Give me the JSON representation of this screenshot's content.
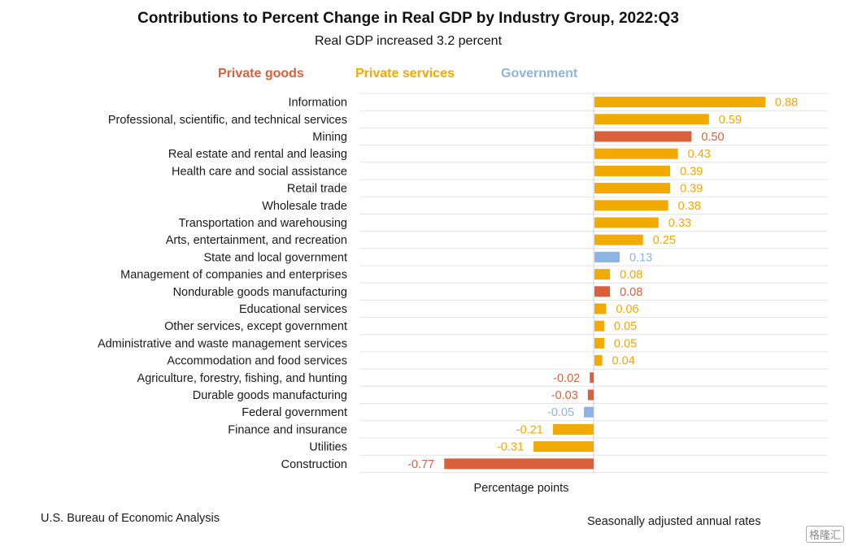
{
  "chart_data": {
    "type": "bar",
    "orientation": "horizontal",
    "title": "Contributions to Percent Change in Real GDP by Industry Group, 2022:Q3",
    "subtitle": "Real GDP increased 3.2 percent",
    "xlabel": "Percentage points",
    "xlim": [
      -1.0,
      1.3
    ],
    "grid": true,
    "legend_placement": "top",
    "legend": [
      {
        "name": "Private goods",
        "color": "#d9603b"
      },
      {
        "name": "Private services",
        "color": "#f2a900"
      },
      {
        "name": "Government",
        "color": "#8db4e2"
      }
    ],
    "categories": [
      "Information",
      "Professional, scientific, and technical services",
      "Mining",
      "Real estate and rental and leasing",
      "Health care and social assistance",
      "Retail trade",
      "Wholesale trade",
      "Transportation and warehousing",
      "Arts, entertainment, and recreation",
      "State and local government",
      "Management of companies and enterprises",
      "Nondurable goods manufacturing",
      "Educational services",
      "Other services, except government",
      "Administrative and waste management services",
      "Accommodation and food services",
      "Agriculture, forestry, fishing, and hunting",
      "Durable goods manufacturing",
      "Federal government",
      "Finance and insurance",
      "Utilities",
      "Construction"
    ],
    "values": [
      0.88,
      0.59,
      0.5,
      0.43,
      0.39,
      0.39,
      0.38,
      0.33,
      0.25,
      0.13,
      0.08,
      0.08,
      0.06,
      0.05,
      0.05,
      0.04,
      -0.02,
      -0.03,
      -0.05,
      -0.21,
      -0.31,
      -0.77
    ],
    "value_labels": [
      "0.88",
      "0.59",
      "0.50",
      "0.43",
      "0.39",
      "0.39",
      "0.38",
      "0.33",
      "0.25",
      "0.13",
      "0.08",
      "0.08",
      "0.06",
      "0.05",
      "0.05",
      "0.04",
      "-0.02",
      "-0.03",
      "-0.05",
      "-0.21",
      "-0.31",
      "-0.77"
    ],
    "groups": [
      "Private services",
      "Private services",
      "Private goods",
      "Private services",
      "Private services",
      "Private services",
      "Private services",
      "Private services",
      "Private services",
      "Government",
      "Private services",
      "Private goods",
      "Private services",
      "Private services",
      "Private services",
      "Private services",
      "Private goods",
      "Private goods",
      "Government",
      "Private services",
      "Private services",
      "Private goods"
    ]
  },
  "footer": {
    "source": "U.S. Bureau of Economic Analysis",
    "note": "Seasonally adjusted annual rates"
  },
  "watermark": "格隆汇"
}
